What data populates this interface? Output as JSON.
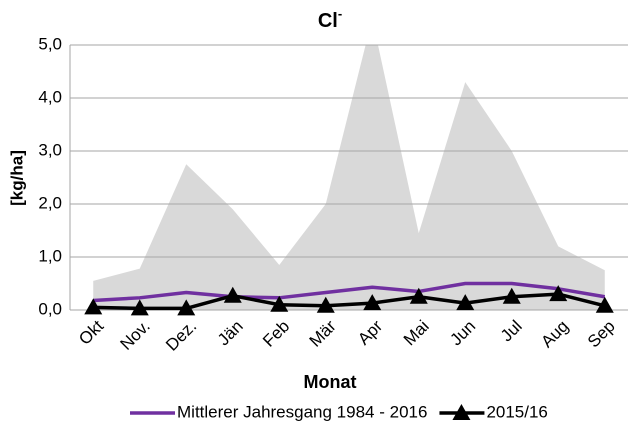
{
  "chart_data": {
    "type": "line",
    "title": "Cl",
    "title_superscript": "-",
    "x_label": "Monat",
    "y_label": "[kg/ha]",
    "categories": [
      "Okt",
      "Nov.",
      "Dez.",
      "Jän",
      "Feb",
      "Mär",
      "Apr",
      "Mai",
      "Jun",
      "Jul",
      "Aug",
      "Sep"
    ],
    "area": {
      "color": "#d9d9d9",
      "values": [
        0.55,
        0.78,
        2.75,
        1.9,
        0.85,
        2.0,
        5.5,
        1.45,
        4.3,
        3.0,
        1.2,
        0.75
      ]
    },
    "series": [
      {
        "name": "Mittlerer Jahresgang 1984 - 2016",
        "color": "#7030a0",
        "values": [
          0.18,
          0.23,
          0.33,
          0.25,
          0.23,
          0.33,
          0.43,
          0.35,
          0.5,
          0.5,
          0.4,
          0.25
        ]
      },
      {
        "name": "2015/16",
        "color": "#000000",
        "marker": "triangle",
        "values": [
          0.05,
          0.03,
          0.03,
          0.27,
          0.1,
          0.08,
          0.13,
          0.25,
          0.13,
          0.25,
          0.3,
          0.08
        ]
      }
    ],
    "ylim": [
      0,
      5
    ],
    "yticks": [
      {
        "value": 0,
        "label": "0,0"
      },
      {
        "value": 1,
        "label": "1,0"
      },
      {
        "value": 2,
        "label": "2,0"
      },
      {
        "value": 3,
        "label": "3,0"
      },
      {
        "value": 4,
        "label": "4,0"
      },
      {
        "value": 5,
        "label": "5,0"
      }
    ],
    "grid": true,
    "legend": "bottom"
  }
}
